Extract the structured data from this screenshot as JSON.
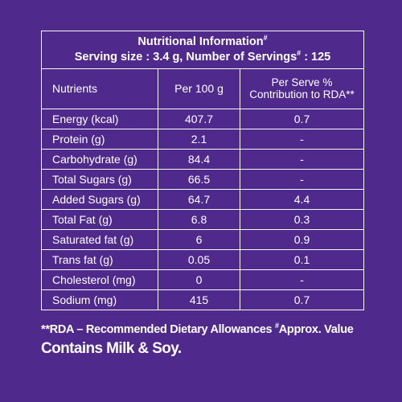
{
  "header": {
    "title": "Nutritional Information",
    "serving_line_a": "Serving size : 3.4 g, Number of Servings",
    "serving_line_b": ": 125",
    "hash": "#"
  },
  "columns": {
    "nutrients": "Nutrients",
    "per100": "Per 100 g",
    "rda_line1": "Per Serve %",
    "rda_line2": "Contribution to RDA**"
  },
  "rows": [
    {
      "name": "Energy (kcal)",
      "per100": "407.7",
      "rda": "0.7"
    },
    {
      "name": "Protein (g)",
      "per100": "2.1",
      "rda": "-"
    },
    {
      "name": "Carbohydrate (g)",
      "per100": "84.4",
      "rda": "-"
    },
    {
      "name": "Total Sugars (g)",
      "per100": "66.5",
      "rda": "-"
    },
    {
      "name": "Added Sugars (g)",
      "per100": "64.7",
      "rda": "4.4"
    },
    {
      "name": "Total Fat (g)",
      "per100": "6.8",
      "rda": "0.3"
    },
    {
      "name": "Saturated fat (g)",
      "per100": "6",
      "rda": "0.9"
    },
    {
      "name": "Trans fat (g)",
      "per100": "0.05",
      "rda": "0.1"
    },
    {
      "name": "Cholesterol (mg)",
      "per100": "0",
      "rda": "-"
    },
    {
      "name": "Sodium (mg)",
      "per100": "415",
      "rda": "0.7"
    }
  ],
  "footnote": {
    "rda_text": "**RDA – Recommended Dietary Allowances",
    "hash": "#",
    "approx_text": "Approx. Value"
  },
  "allergen": "Contains Milk & Soy.",
  "colors": {
    "background": "#4f2a8c",
    "text": "#ffffff",
    "lines": "#ffffff"
  }
}
